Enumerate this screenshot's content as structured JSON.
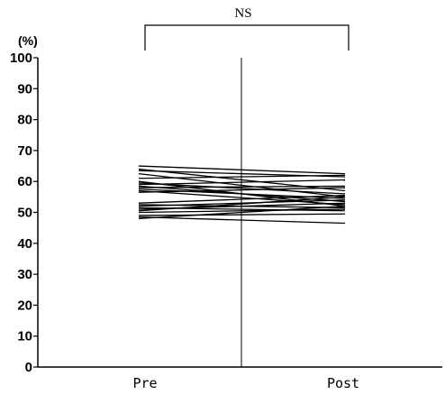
{
  "chart_data": {
    "type": "line",
    "title": "",
    "xlabel": "",
    "ylabel": "(%)",
    "categories": [
      "Pre",
      "Post"
    ],
    "ylim": [
      0,
      100
    ],
    "yticks": [
      0,
      10,
      20,
      30,
      40,
      50,
      60,
      70,
      80,
      90,
      100
    ],
    "grid": false,
    "legend": "none",
    "significance": {
      "label": "NS",
      "between": [
        "Pre",
        "Post"
      ]
    },
    "series": [
      {
        "values": [
          65.0,
          62.5
        ]
      },
      {
        "values": [
          64.0,
          57.0
        ]
      },
      {
        "values": [
          63.5,
          61.5
        ]
      },
      {
        "values": [
          62.5,
          55.0
        ]
      },
      {
        "values": [
          61.0,
          62.0
        ]
      },
      {
        "values": [
          60.0,
          52.0
        ]
      },
      {
        "values": [
          59.5,
          56.0
        ]
      },
      {
        "values": [
          59.0,
          60.5
        ]
      },
      {
        "values": [
          58.5,
          53.5
        ]
      },
      {
        "values": [
          58.0,
          58.5
        ]
      },
      {
        "values": [
          57.5,
          54.5
        ]
      },
      {
        "values": [
          57.0,
          52.5
        ]
      },
      {
        "values": [
          56.5,
          58.0
        ]
      },
      {
        "values": [
          53.0,
          55.5
        ]
      },
      {
        "values": [
          52.5,
          51.5
        ]
      },
      {
        "values": [
          52.0,
          54.0
        ]
      },
      {
        "values": [
          51.5,
          50.5
        ]
      },
      {
        "values": [
          51.0,
          53.0
        ]
      },
      {
        "values": [
          50.5,
          55.0
        ]
      },
      {
        "values": [
          50.0,
          51.0
        ]
      },
      {
        "values": [
          49.0,
          49.5
        ]
      },
      {
        "values": [
          48.5,
          46.5
        ]
      },
      {
        "values": [
          48.0,
          52.0
        ]
      }
    ],
    "colors": {
      "axis": "#000000",
      "line": "#000000"
    }
  }
}
